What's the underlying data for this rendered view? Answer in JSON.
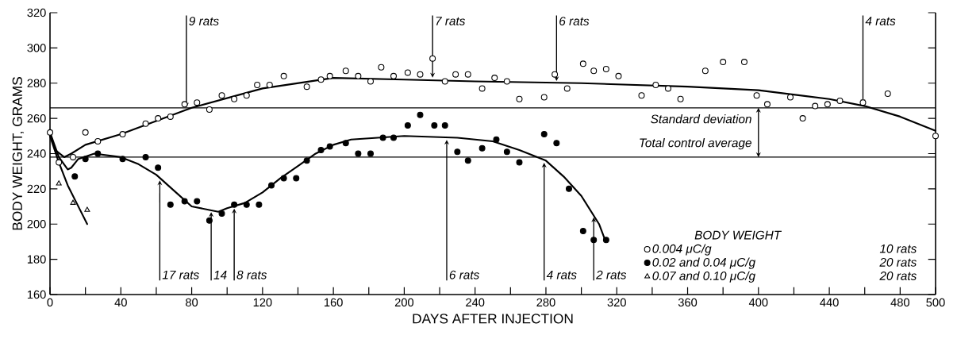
{
  "chart_data": {
    "type": "scatter",
    "xlabel": "DAYS AFTER INJECTION",
    "ylabel": "BODY WEIGHT, GRAMS",
    "legend_title": "BODY WEIGHT",
    "legend": "bottom right",
    "grid": false,
    "xlim": [
      0,
      500
    ],
    "ylim": [
      160,
      320
    ],
    "xticks": [
      0,
      {
        "value": 20,
        "label": null
      },
      40,
      {
        "value": 60,
        "label": null
      },
      80,
      {
        "value": 100,
        "label": null
      },
      120,
      {
        "value": 140,
        "label": null
      },
      160,
      {
        "value": 180,
        "label": null
      },
      200,
      {
        "value": 220,
        "label": null
      },
      240,
      {
        "value": 260,
        "label": null
      },
      280,
      {
        "value": 300,
        "label": null
      },
      320,
      {
        "value": 340,
        "label": null
      },
      360,
      {
        "value": 380,
        "label": null
      },
      400,
      {
        "value": 420,
        "label": null
      },
      440,
      {
        "value": 460,
        "label": null
      },
      480,
      500
    ],
    "yticks": [
      160,
      180,
      200,
      220,
      240,
      260,
      280,
      300,
      320
    ],
    "series": [
      {
        "type": "line",
        "color": "#000000",
        "marker": "none",
        "x": [
          0,
          3,
          8,
          12,
          20,
          40,
          80,
          120,
          160,
          200,
          240,
          300,
          360,
          400,
          440,
          460,
          480,
          500
        ],
        "values": [
          252,
          242,
          238,
          240,
          245,
          251,
          266,
          277,
          283,
          282,
          281,
          280,
          278,
          276,
          271,
          267,
          261,
          253
        ]
      },
      {
        "type": "line",
        "color": "#000000",
        "marker": "none",
        "x": [
          0,
          5,
          10,
          12,
          16,
          25,
          40,
          50,
          60,
          70,
          80,
          90,
          95,
          100,
          110,
          120,
          130,
          140,
          150,
          160,
          170,
          200,
          230,
          250,
          265,
          280,
          290,
          300,
          310,
          313
        ],
        "values": [
          252,
          238,
          231,
          232,
          237,
          240,
          238,
          234,
          228,
          219,
          210,
          208,
          207,
          209,
          212,
          218,
          226,
          233,
          240,
          245,
          248,
          250,
          249,
          247,
          242,
          236,
          227,
          216,
          200,
          192
        ]
      },
      {
        "type": "line",
        "color": "#000000",
        "marker": "none",
        "x": [
          0,
          5,
          10,
          15,
          21
        ],
        "values": [
          250,
          235,
          222,
          212,
          200
        ]
      },
      {
        "name": "0.004 μC/g",
        "color": "#ffffff",
        "marker": "circle",
        "x": [
          0,
          5,
          13,
          20,
          27,
          41,
          54,
          61,
          68,
          76,
          83,
          90,
          97,
          104,
          111,
          117,
          124,
          132,
          145,
          153,
          158,
          167,
          174,
          181,
          187,
          194,
          202,
          209,
          216,
          223,
          229,
          236,
          244,
          251,
          258,
          265,
          279,
          285,
          292,
          301,
          307,
          314,
          321,
          334,
          342,
          349,
          356,
          370,
          380,
          392,
          399,
          405,
          418,
          425,
          432,
          439,
          446,
          459,
          473,
          500
        ],
        "values": [
          252,
          235,
          238,
          252,
          247,
          251,
          257,
          260,
          261,
          268,
          269,
          265,
          273,
          271,
          273,
          279,
          279,
          284,
          278,
          282,
          284,
          287,
          284,
          281,
          289,
          284,
          286,
          285,
          294,
          281,
          285,
          285,
          277,
          283,
          281,
          271,
          272,
          285,
          277,
          291,
          287,
          288,
          284,
          273,
          279,
          277,
          271,
          287,
          292,
          292,
          273,
          268,
          272,
          260,
          267,
          268,
          270,
          269,
          274,
          250
        ]
      },
      {
        "name": "0.02 and 0.04 μC/g",
        "color": "#000000",
        "marker": "circle",
        "x": [
          14,
          20,
          27,
          41,
          54,
          61,
          68,
          76,
          83,
          90,
          97,
          104,
          111,
          118,
          125,
          132,
          139,
          145,
          153,
          158,
          167,
          174,
          181,
          188,
          194,
          202,
          209,
          217,
          223,
          230,
          236,
          244,
          252,
          258,
          265,
          279,
          286,
          293,
          301,
          307,
          314
        ],
        "values": [
          227,
          237,
          240,
          237,
          238,
          232,
          211,
          213,
          213,
          202,
          206,
          211,
          211,
          211,
          222,
          226,
          226,
          236,
          242,
          244,
          246,
          240,
          240,
          249,
          249,
          256,
          262,
          256,
          256,
          241,
          236,
          243,
          248,
          241,
          235,
          251,
          246,
          220,
          196,
          191,
          191
        ]
      },
      {
        "name": "0.07 and 0.10 μC/g",
        "color": "#ffffff",
        "marker": "triangle",
        "x": [
          5,
          13,
          21
        ],
        "values": [
          223,
          212,
          208
        ]
      }
    ],
    "ref_lines": [
      {
        "axis": "y",
        "value": 266,
        "label": "Standard deviation"
      },
      {
        "axis": "y",
        "value": 238,
        "label": "Total control average"
      }
    ],
    "annotations": [
      {
        "text": "9 rats",
        "x": 77,
        "y": 265
      },
      {
        "text": "7 rats",
        "x": 216,
        "y": 282
      },
      {
        "text": "6 rats",
        "x": 286,
        "y": 280
      },
      {
        "text": "4 rats",
        "x": 459,
        "y": 267
      },
      {
        "text": "17 rats",
        "x": 62,
        "y": 226
      },
      {
        "text": "14",
        "x": 91,
        "y": 208
      },
      {
        "text": "8 rats",
        "x": 104,
        "y": 210
      },
      {
        "text": "6 rats",
        "x": 224,
        "y": 249
      },
      {
        "text": "4 rats",
        "x": 279,
        "y": 236
      },
      {
        "text": "2 rats",
        "x": 307,
        "y": 205
      },
      "10 rats",
      "20 rats",
      "20 rats"
    ]
  }
}
